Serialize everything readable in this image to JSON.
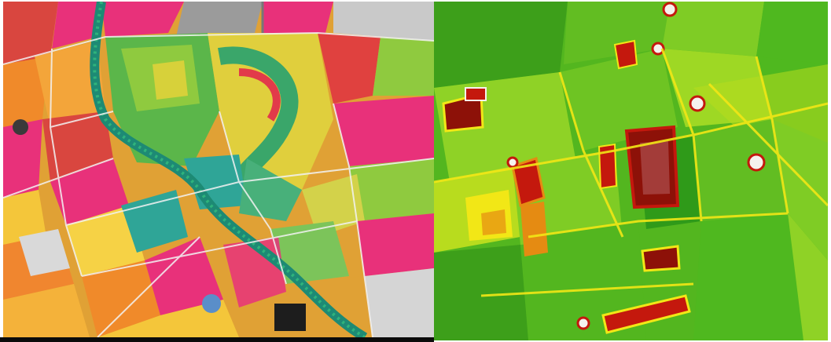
{
  "panels": [
    {
      "id": "false-color-composite",
      "palette": {
        "pink": "#e8317a",
        "magenta": "#d93aa0",
        "orange": "#f08a2a",
        "yellow": "#f4c63a",
        "green": "#4fb24a",
        "teal": "#2fa597",
        "grey": "#8a8a8a",
        "lightgrey": "#c9c9c9",
        "white": "#f2f2f2",
        "dark": "#1d1d1d"
      }
    },
    {
      "id": "ndvi-map",
      "palette": {
        "dark-green": "#2f9a19",
        "green": "#4fb81f",
        "light-green": "#7fcc25",
        "yellow-green": "#b8dc1e",
        "yellow": "#f2e716",
        "orange": "#e58b12",
        "red": "#c4180d",
        "dark-red": "#8d1108",
        "white": "#f5f2ee"
      }
    }
  ]
}
